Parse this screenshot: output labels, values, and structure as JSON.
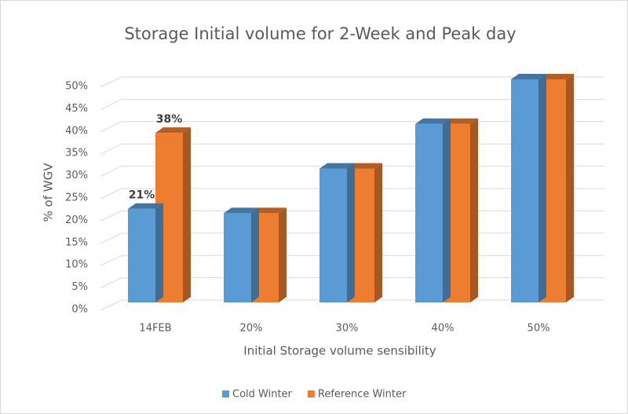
{
  "chart_data": {
    "type": "bar3d",
    "title": "Storage Initial volume for 2-Week and Peak day",
    "x_label": "Initial Storage volume sensibility",
    "y_label": "% of WGV",
    "categories": [
      "14FEB",
      "20%",
      "30%",
      "40%",
      "50%"
    ],
    "series": [
      {
        "name": "Cold Winter",
        "color": "#5b9bd5",
        "values": [
          21,
          20,
          30,
          40,
          50
        ],
        "value_labels": [
          "21%",
          null,
          null,
          null,
          null
        ]
      },
      {
        "name": "Reference Winter",
        "color": "#ed7d31",
        "values": [
          38,
          20,
          30,
          40,
          50
        ],
        "value_labels": [
          "38%",
          null,
          null,
          null,
          null
        ]
      }
    ],
    "ylim": [
      0,
      50
    ],
    "yticks": [
      {
        "value": 0,
        "label": "0%"
      },
      {
        "value": 5,
        "label": "5%"
      },
      {
        "value": 10,
        "label": "10%"
      },
      {
        "value": 15,
        "label": "15%"
      },
      {
        "value": 20,
        "label": "20%"
      },
      {
        "value": 25,
        "label": "25%"
      },
      {
        "value": 30,
        "label": "30%"
      },
      {
        "value": 35,
        "label": "35%"
      },
      {
        "value": 40,
        "label": "40%"
      },
      {
        "value": 45,
        "label": "45%"
      },
      {
        "value": 50,
        "label": "50%"
      }
    ],
    "grid": true,
    "legend": "bottom"
  }
}
